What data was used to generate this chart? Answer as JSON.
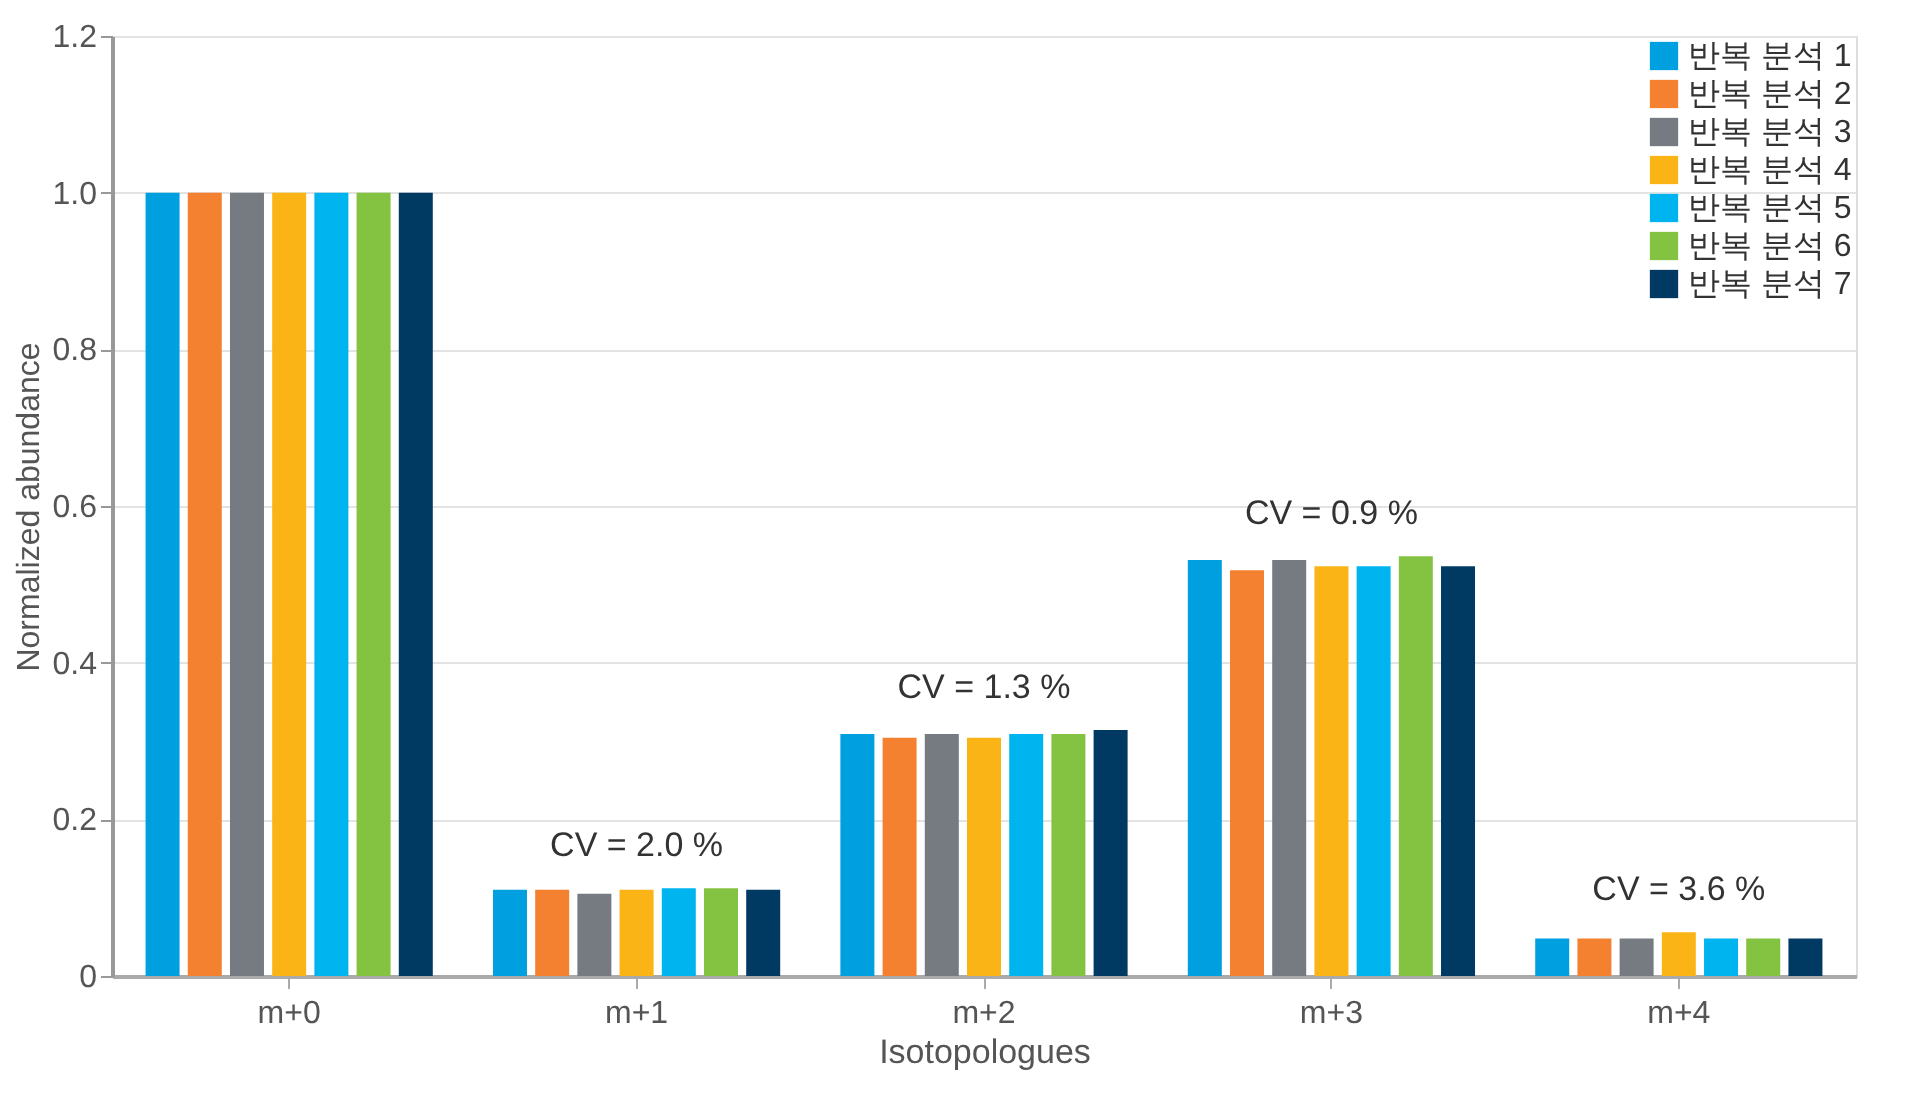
{
  "chart_data": {
    "type": "bar",
    "xlabel": "Isotopologues",
    "ylabel": "Normalized abundance",
    "categories": [
      "m+0",
      "m+1",
      "m+2",
      "m+3",
      "m+4"
    ],
    "series": [
      {
        "name": "반복 분석 1",
        "color": "#009fdf",
        "values": [
          1.0,
          0.11,
          0.309,
          0.531,
          0.048
        ]
      },
      {
        "name": "반복 분석 2",
        "color": "#f38130",
        "values": [
          1.0,
          0.11,
          0.304,
          0.518,
          0.048
        ]
      },
      {
        "name": "반복 분석 3",
        "color": "#767a81",
        "values": [
          1.0,
          0.105,
          0.309,
          0.531,
          0.048
        ]
      },
      {
        "name": "반복 분석 4",
        "color": "#fbb416",
        "values": [
          1.0,
          0.11,
          0.304,
          0.523,
          0.056
        ]
      },
      {
        "name": "반복 분석 5",
        "color": "#00b5ef",
        "values": [
          1.0,
          0.112,
          0.309,
          0.523,
          0.048
        ]
      },
      {
        "name": "반복 분석 6",
        "color": "#84c341",
        "values": [
          1.0,
          0.112,
          0.309,
          0.536,
          0.048
        ]
      },
      {
        "name": "반복 분석 7",
        "color": "#003a63",
        "values": [
          1.0,
          0.11,
          0.314,
          0.523,
          0.048
        ]
      }
    ],
    "ylim": [
      0,
      1.2
    ],
    "yticks": [
      {
        "value": 0,
        "label": "0"
      },
      0.2,
      0.4,
      0.6,
      0.8,
      {
        "value": 1.0,
        "label": "1.0"
      },
      1.2
    ],
    "grid": "y",
    "legend": "top right",
    "annotations": [
      "CV = 2.0 %",
      "CV = 1.3 %",
      "CV = 0.9 %",
      "CV = 3.6 %"
    ]
  }
}
